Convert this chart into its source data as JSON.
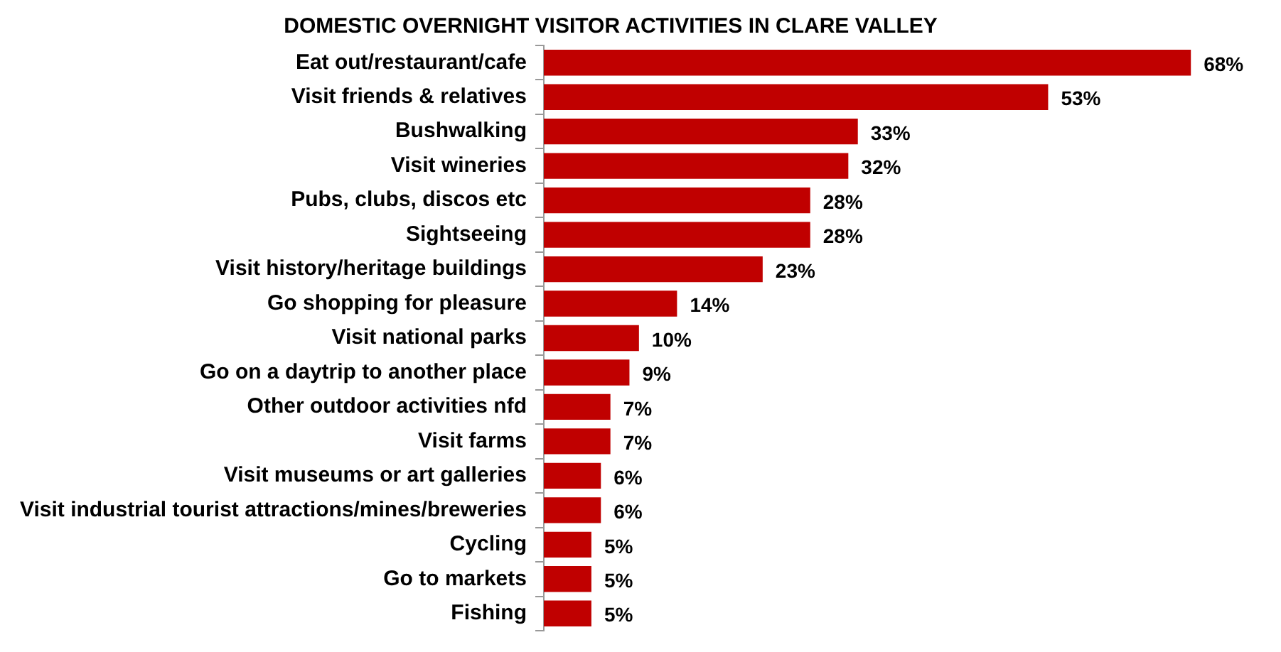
{
  "chart_data": {
    "type": "bar",
    "orientation": "horizontal",
    "title": "DOMESTIC OVERNIGHT VISITOR ACTIVITIES IN CLARE VALLEY",
    "categories": [
      "Eat out/restaurant/cafe",
      "Visit friends & relatives",
      "Bushwalking",
      "Visit wineries",
      "Pubs, clubs, discos etc",
      "Sightseeing",
      "Visit history/heritage buildings",
      "Go shopping for pleasure",
      "Visit national parks",
      "Go on a daytrip to another place",
      "Other outdoor activities nfd",
      "Visit farms",
      "Visit museums or art galleries",
      "Visit industrial tourist attractions/mines/breweries",
      "Cycling",
      "Go to markets",
      "Fishing"
    ],
    "values": [
      68,
      53,
      33,
      32,
      28,
      28,
      23,
      14,
      10,
      9,
      7,
      7,
      6,
      6,
      5,
      5,
      5
    ],
    "value_labels": [
      "68%",
      "53%",
      "33%",
      "32%",
      "28%",
      "28%",
      "23%",
      "14%",
      "10%",
      "9%",
      "7%",
      "7%",
      "6%",
      "6%",
      "5%",
      "5%",
      "5%"
    ],
    "color": "#c00000",
    "legend": false,
    "grid": false
  }
}
